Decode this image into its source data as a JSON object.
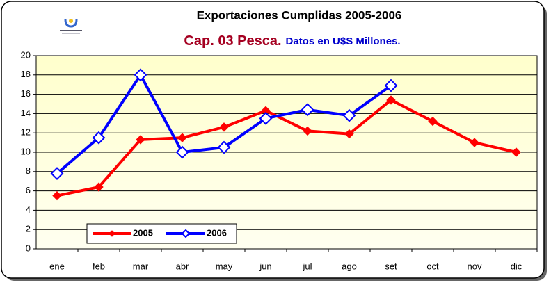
{
  "chart_data": {
    "type": "line",
    "title": "Exportaciones Cumplidas 2005-2006",
    "subtitle": "Cap. 03 Pesca.",
    "subtitle_detail": "Datos en U$S Millones.",
    "categories": [
      "ene",
      "feb",
      "mar",
      "abr",
      "may",
      "jun",
      "jul",
      "ago",
      "set",
      "oct",
      "nov",
      "dic"
    ],
    "series": [
      {
        "name": "2005",
        "color": "#ff0000",
        "values": [
          5.5,
          6.4,
          11.3,
          11.5,
          12.6,
          14.3,
          12.2,
          11.9,
          15.4,
          13.2,
          11.0,
          10.0
        ]
      },
      {
        "name": "2006",
        "color": "#0000ff",
        "values": [
          7.8,
          11.5,
          18.0,
          10.0,
          10.5,
          13.5,
          14.4,
          13.8,
          16.9,
          null,
          null,
          null
        ]
      }
    ],
    "ylim": [
      0,
      20
    ],
    "yticks": [
      0,
      2,
      4,
      6,
      8,
      10,
      12,
      14,
      16,
      18,
      20
    ],
    "grid": true,
    "legend": "lower left"
  }
}
